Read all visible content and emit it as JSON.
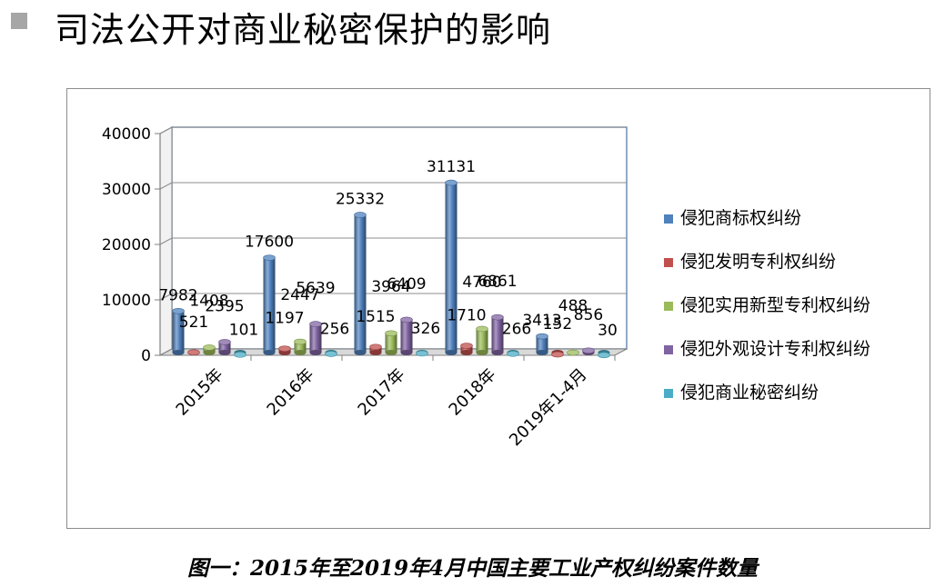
{
  "slide": {
    "title": "司法公开对商业秘密保护的影响",
    "caption": "图一：2015年至2019年4月中国主要工业产权纠纷案件数量"
  },
  "chart_data": {
    "type": "bar",
    "categories": [
      "2015年",
      "2016年",
      "2017年",
      "2018年",
      "2019年1-4月"
    ],
    "series": [
      {
        "name": "侵犯商标权纠纷",
        "values": [
          7982,
          17600,
          25332,
          31131,
          3413
        ],
        "color": "#4f81bd"
      },
      {
        "name": "侵犯发明专利权纠纷",
        "values": [
          521,
          1197,
          1515,
          1710,
          152
        ],
        "color": "#c0504d"
      },
      {
        "name": "侵犯实用新型专利权纠纷",
        "values": [
          1408,
          2447,
          3964,
          4760,
          488
        ],
        "color": "#9bbb59"
      },
      {
        "name": "侵犯外观设计专利权纠纷",
        "values": [
          2395,
          5639,
          6409,
          6861,
          856
        ],
        "color": "#8064a2"
      },
      {
        "name": "侵犯商业秘密纠纷",
        "values": [
          101,
          256,
          326,
          266,
          30
        ],
        "color": "#4bacc6"
      }
    ],
    "yticks": [
      "0",
      "10000",
      "20000",
      "30000",
      "40000"
    ],
    "ylim": [
      0,
      40000
    ],
    "grid": true,
    "legend_position": "right",
    "style": "3d-cylinder"
  }
}
